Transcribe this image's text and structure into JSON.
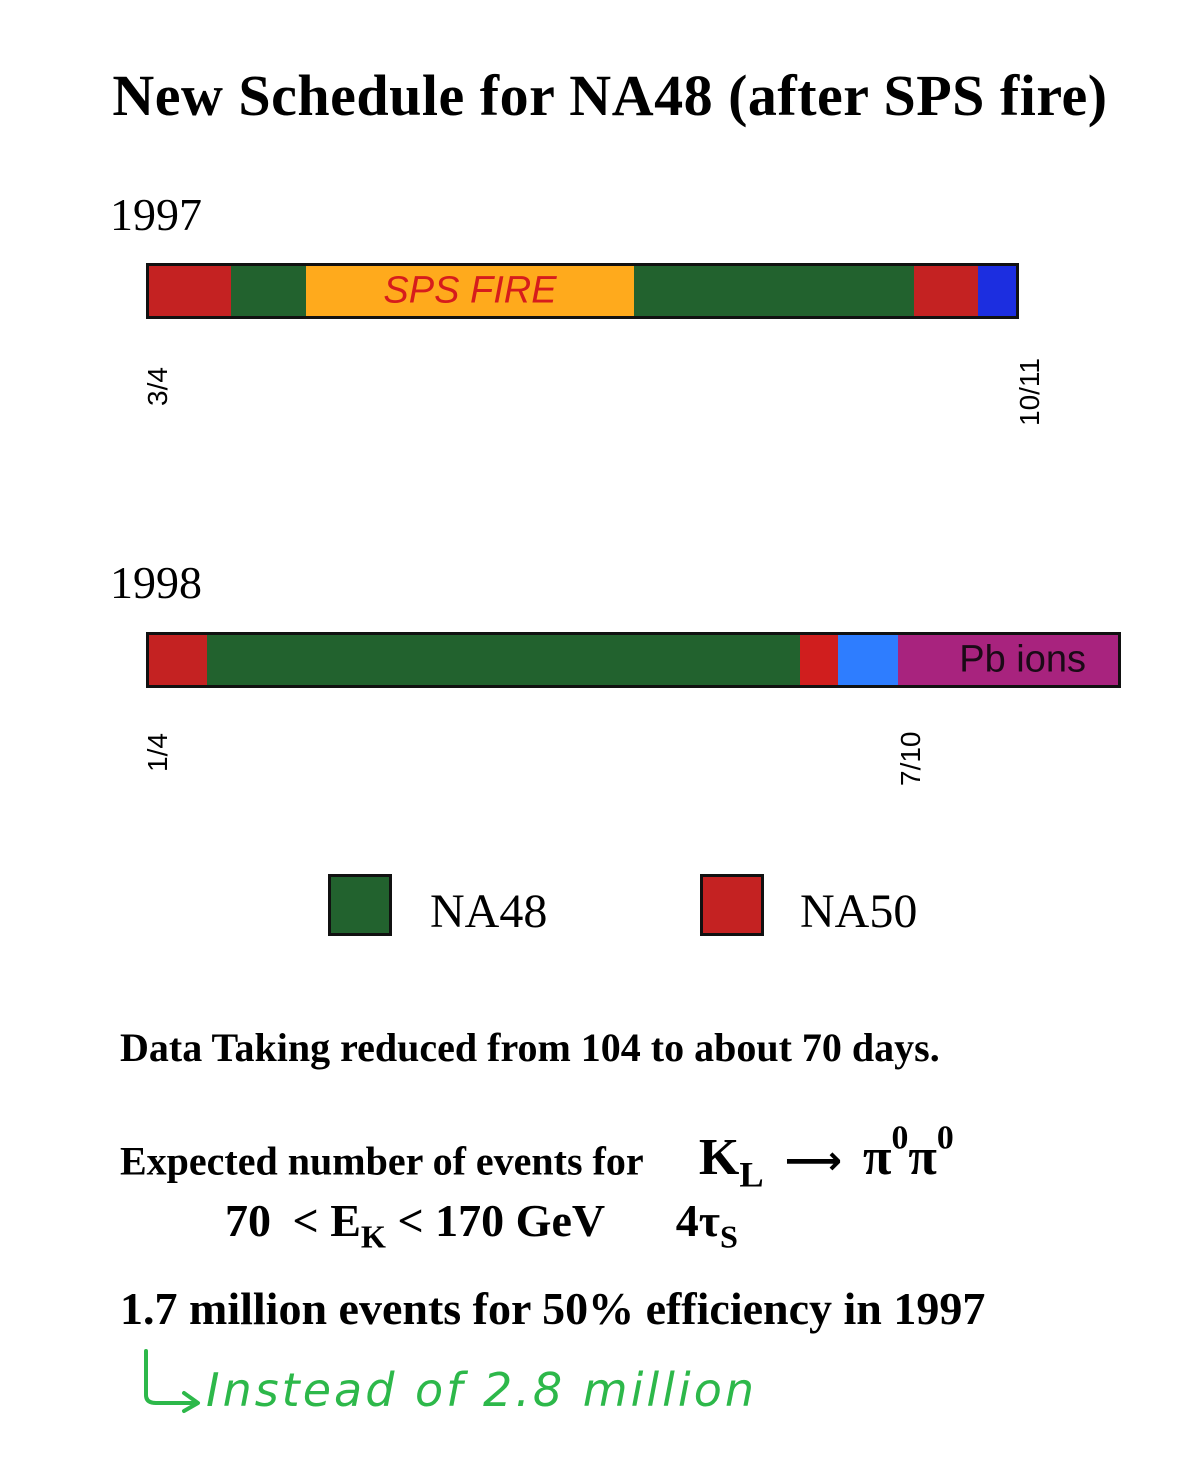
{
  "title": "New Schedule for NA48 (after SPS fire)",
  "timeline_1997": {
    "year": "1997",
    "start_label": "3/4",
    "end_label": "10/11",
    "segments": [
      {
        "experiment": "NA50",
        "color": "#c42222",
        "label": ""
      },
      {
        "experiment": "NA48",
        "color": "#22622e",
        "label": ""
      },
      {
        "experiment": "SPS FIRE",
        "color": "#ffaa1c",
        "label": "SPS FIRE"
      },
      {
        "experiment": "NA48",
        "color": "#22622e",
        "label": ""
      },
      {
        "experiment": "NA50",
        "color": "#c42222",
        "label": ""
      },
      {
        "experiment": "other",
        "color": "#1c2ee0",
        "label": ""
      }
    ]
  },
  "timeline_1998": {
    "year": "1998",
    "start_label": "1/4",
    "end_label": "7/10",
    "segments": [
      {
        "experiment": "NA50",
        "color": "#c42222",
        "label": ""
      },
      {
        "experiment": "NA48",
        "color": "#22622e",
        "label": ""
      },
      {
        "experiment": "NA50",
        "color": "#d01e1e",
        "label": ""
      },
      {
        "experiment": "other",
        "color": "#2e7dff",
        "label": ""
      },
      {
        "experiment": "Pb ions",
        "color": "#a8237e",
        "label": "Pb ions"
      }
    ]
  },
  "legend": [
    {
      "label": "NA48",
      "color": "#22622e"
    },
    {
      "label": "NA50",
      "color": "#c42222"
    }
  ],
  "text": {
    "line1": "Data Taking reduced from 104 to about 70 days.",
    "line2_prefix": "Expected number of events for",
    "decay_K": "K",
    "decay_K_sub": "L",
    "decay_arrow": "⟶",
    "decay_pi": "π",
    "decay_pi_sup": "0",
    "line3_lo": "70",
    "line3_lt1": "<",
    "line3_E": "E",
    "line3_E_sub": "K",
    "line3_lt2": "<",
    "line3_hi": "170 GeV",
    "line3_tau_n": "4",
    "line3_tau": "τ",
    "line3_tau_sub": "S",
    "line4": "1.7 million events for 50% efficiency in 1997"
  },
  "handwritten_note": "Instead of 2.8 million"
}
